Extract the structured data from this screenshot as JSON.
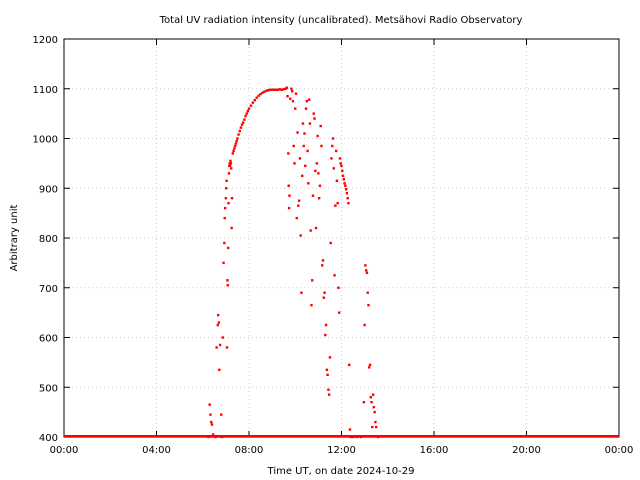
{
  "chart_data": {
    "type": "scatter",
    "title": "Total UV radiation intensity (uncalibrated). Metsähovi Radio Observatory",
    "xlabel": "Time UT, on date 2024-10-29",
    "ylabel": "Arbitrary unit",
    "xlim": [
      "00:00",
      "24:00"
    ],
    "ylim": [
      400,
      1200
    ],
    "xticks": [
      "00:00",
      "04:00",
      "08:00",
      "12:00",
      "16:00",
      "20:00",
      "00:00"
    ],
    "yticks": [
      400,
      500,
      600,
      700,
      800,
      900,
      1000,
      1100,
      1200
    ],
    "grid": true,
    "marker_color": "#ff0000",
    "baseline": {
      "value": 400,
      "from": "00:00",
      "to": "24:00"
    },
    "points": [
      {
        "x": "06:15",
        "y": 400
      },
      {
        "x": "06:18",
        "y": 465
      },
      {
        "x": "06:20",
        "y": 445
      },
      {
        "x": "06:22",
        "y": 430
      },
      {
        "x": "06:24",
        "y": 425
      },
      {
        "x": "06:27",
        "y": 405
      },
      {
        "x": "06:33",
        "y": 400
      },
      {
        "x": "06:36",
        "y": 580
      },
      {
        "x": "06:39",
        "y": 625
      },
      {
        "x": "06:40",
        "y": 645
      },
      {
        "x": "06:42",
        "y": 630
      },
      {
        "x": "06:43",
        "y": 535
      },
      {
        "x": "06:45",
        "y": 585
      },
      {
        "x": "06:48",
        "y": 445
      },
      {
        "x": "06:50",
        "y": 400
      },
      {
        "x": "06:52",
        "y": 600
      },
      {
        "x": "06:54",
        "y": 750
      },
      {
        "x": "06:56",
        "y": 790
      },
      {
        "x": "06:57",
        "y": 840
      },
      {
        "x": "06:58",
        "y": 860
      },
      {
        "x": "07:00",
        "y": 880
      },
      {
        "x": "07:01",
        "y": 900
      },
      {
        "x": "07:02",
        "y": 915
      },
      {
        "x": "07:03",
        "y": 580
      },
      {
        "x": "07:04",
        "y": 715
      },
      {
        "x": "07:05",
        "y": 705
      },
      {
        "x": "07:06",
        "y": 780
      },
      {
        "x": "07:07",
        "y": 870
      },
      {
        "x": "07:08",
        "y": 930
      },
      {
        "x": "07:09",
        "y": 945
      },
      {
        "x": "07:10",
        "y": 950
      },
      {
        "x": "07:11",
        "y": 945
      },
      {
        "x": "07:12",
        "y": 955
      },
      {
        "x": "07:13",
        "y": 950
      },
      {
        "x": "07:14",
        "y": 940
      },
      {
        "x": "07:15",
        "y": 820
      },
      {
        "x": "07:16",
        "y": 880
      },
      {
        "x": "07:18",
        "y": 970
      },
      {
        "x": "07:20",
        "y": 975
      },
      {
        "x": "07:22",
        "y": 980
      },
      {
        "x": "07:24",
        "y": 985
      },
      {
        "x": "07:26",
        "y": 990
      },
      {
        "x": "07:28",
        "y": 995
      },
      {
        "x": "07:30",
        "y": 1000
      },
      {
        "x": "07:33",
        "y": 1008
      },
      {
        "x": "07:36",
        "y": 1015
      },
      {
        "x": "07:39",
        "y": 1022
      },
      {
        "x": "07:42",
        "y": 1028
      },
      {
        "x": "07:45",
        "y": 1032
      },
      {
        "x": "07:48",
        "y": 1038
      },
      {
        "x": "07:51",
        "y": 1045
      },
      {
        "x": "07:54",
        "y": 1050
      },
      {
        "x": "07:57",
        "y": 1055
      },
      {
        "x": "08:00",
        "y": 1060
      },
      {
        "x": "08:05",
        "y": 1066
      },
      {
        "x": "08:10",
        "y": 1072
      },
      {
        "x": "08:15",
        "y": 1077
      },
      {
        "x": "08:20",
        "y": 1082
      },
      {
        "x": "08:25",
        "y": 1086
      },
      {
        "x": "08:30",
        "y": 1089
      },
      {
        "x": "08:35",
        "y": 1092
      },
      {
        "x": "08:40",
        "y": 1094
      },
      {
        "x": "08:45",
        "y": 1096
      },
      {
        "x": "08:50",
        "y": 1097
      },
      {
        "x": "08:55",
        "y": 1098
      },
      {
        "x": "09:00",
        "y": 1098
      },
      {
        "x": "09:05",
        "y": 1098
      },
      {
        "x": "09:10",
        "y": 1098
      },
      {
        "x": "09:15",
        "y": 1098
      },
      {
        "x": "09:20",
        "y": 1099
      },
      {
        "x": "09:25",
        "y": 1098
      },
      {
        "x": "09:30",
        "y": 1099
      },
      {
        "x": "09:35",
        "y": 1100
      },
      {
        "x": "09:38",
        "y": 1102
      },
      {
        "x": "09:40",
        "y": 1085
      },
      {
        "x": "09:42",
        "y": 970
      },
      {
        "x": "09:43",
        "y": 905
      },
      {
        "x": "09:44",
        "y": 860
      },
      {
        "x": "09:45",
        "y": 885
      },
      {
        "x": "09:47",
        "y": 1080
      },
      {
        "x": "09:50",
        "y": 1100
      },
      {
        "x": "09:52",
        "y": 1095
      },
      {
        "x": "09:54",
        "y": 1075
      },
      {
        "x": "09:56",
        "y": 985
      },
      {
        "x": "09:58",
        "y": 950
      },
      {
        "x": "10:00",
        "y": 1060
      },
      {
        "x": "10:02",
        "y": 1090
      },
      {
        "x": "10:04",
        "y": 840
      },
      {
        "x": "10:06",
        "y": 1012
      },
      {
        "x": "10:08",
        "y": 865
      },
      {
        "x": "10:10",
        "y": 875
      },
      {
        "x": "10:12",
        "y": 960
      },
      {
        "x": "10:14",
        "y": 805
      },
      {
        "x": "10:16",
        "y": 690
      },
      {
        "x": "10:18",
        "y": 925
      },
      {
        "x": "10:20",
        "y": 1030
      },
      {
        "x": "10:22",
        "y": 985
      },
      {
        "x": "10:24",
        "y": 1010
      },
      {
        "x": "10:26",
        "y": 945
      },
      {
        "x": "10:28",
        "y": 1060
      },
      {
        "x": "10:30",
        "y": 1075
      },
      {
        "x": "10:32",
        "y": 975
      },
      {
        "x": "10:34",
        "y": 910
      },
      {
        "x": "10:36",
        "y": 1078
      },
      {
        "x": "10:38",
        "y": 1030
      },
      {
        "x": "10:40",
        "y": 815
      },
      {
        "x": "10:42",
        "y": 665
      },
      {
        "x": "10:44",
        "y": 715
      },
      {
        "x": "10:46",
        "y": 885
      },
      {
        "x": "10:48",
        "y": 1050
      },
      {
        "x": "10:50",
        "y": 1040
      },
      {
        "x": "10:52",
        "y": 935
      },
      {
        "x": "10:54",
        "y": 820
      },
      {
        "x": "10:56",
        "y": 950
      },
      {
        "x": "10:58",
        "y": 1005
      },
      {
        "x": "11:00",
        "y": 930
      },
      {
        "x": "11:02",
        "y": 880
      },
      {
        "x": "11:04",
        "y": 905
      },
      {
        "x": "11:06",
        "y": 1025
      },
      {
        "x": "11:08",
        "y": 985
      },
      {
        "x": "11:10",
        "y": 745
      },
      {
        "x": "11:12",
        "y": 755
      },
      {
        "x": "11:14",
        "y": 680
      },
      {
        "x": "11:16",
        "y": 690
      },
      {
        "x": "11:18",
        "y": 605
      },
      {
        "x": "11:20",
        "y": 625
      },
      {
        "x": "11:22",
        "y": 535
      },
      {
        "x": "11:24",
        "y": 525
      },
      {
        "x": "11:26",
        "y": 495
      },
      {
        "x": "11:28",
        "y": 485
      },
      {
        "x": "11:30",
        "y": 560
      },
      {
        "x": "11:32",
        "y": 790
      },
      {
        "x": "11:34",
        "y": 960
      },
      {
        "x": "11:36",
        "y": 985
      },
      {
        "x": "11:38",
        "y": 1000
      },
      {
        "x": "11:40",
        "y": 940
      },
      {
        "x": "11:42",
        "y": 725
      },
      {
        "x": "11:44",
        "y": 865
      },
      {
        "x": "11:46",
        "y": 975
      },
      {
        "x": "11:48",
        "y": 915
      },
      {
        "x": "11:50",
        "y": 870
      },
      {
        "x": "11:52",
        "y": 700
      },
      {
        "x": "11:54",
        "y": 650
      },
      {
        "x": "11:56",
        "y": 960
      },
      {
        "x": "11:58",
        "y": 950
      },
      {
        "x": "12:00",
        "y": 945
      },
      {
        "x": "12:02",
        "y": 935
      },
      {
        "x": "12:04",
        "y": 925
      },
      {
        "x": "12:06",
        "y": 918
      },
      {
        "x": "12:08",
        "y": 910
      },
      {
        "x": "12:10",
        "y": 905
      },
      {
        "x": "12:12",
        "y": 898
      },
      {
        "x": "12:14",
        "y": 890
      },
      {
        "x": "12:16",
        "y": 880
      },
      {
        "x": "12:18",
        "y": 870
      },
      {
        "x": "12:20",
        "y": 545
      },
      {
        "x": "12:22",
        "y": 415
      },
      {
        "x": "12:24",
        "y": 400
      },
      {
        "x": "12:30",
        "y": 400
      },
      {
        "x": "12:40",
        "y": 400
      },
      {
        "x": "12:50",
        "y": 400
      },
      {
        "x": "12:58",
        "y": 470
      },
      {
        "x": "13:00",
        "y": 625
      },
      {
        "x": "13:02",
        "y": 745
      },
      {
        "x": "13:04",
        "y": 735
      },
      {
        "x": "13:06",
        "y": 730
      },
      {
        "x": "13:08",
        "y": 690
      },
      {
        "x": "13:10",
        "y": 665
      },
      {
        "x": "13:12",
        "y": 540
      },
      {
        "x": "13:14",
        "y": 545
      },
      {
        "x": "13:16",
        "y": 480
      },
      {
        "x": "13:18",
        "y": 470
      },
      {
        "x": "13:20",
        "y": 420
      },
      {
        "x": "13:22",
        "y": 485
      },
      {
        "x": "13:24",
        "y": 460
      },
      {
        "x": "13:26",
        "y": 450
      },
      {
        "x": "13:28",
        "y": 430
      },
      {
        "x": "13:30",
        "y": 420
      },
      {
        "x": "13:35",
        "y": 400
      }
    ]
  }
}
